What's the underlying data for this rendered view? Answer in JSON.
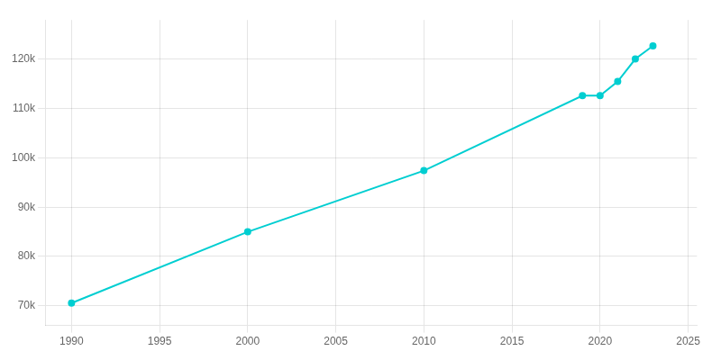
{
  "chart_data": {
    "type": "line",
    "x": [
      1990,
      2000,
      2010,
      2019,
      2020,
      2021,
      2022,
      2023
    ],
    "values": [
      70531,
      85000,
      97422,
      112641,
      112641,
      115513,
      120081,
      122748
    ],
    "color": "#00CED1",
    "marker": "circle",
    "xlim": [
      1988.5,
      2025.5
    ],
    "xticks": [
      1990,
      1995,
      2000,
      2005,
      2010,
      2015,
      2020,
      2025
    ],
    "ylim": [
      66000,
      128000
    ],
    "yticks": [
      {
        "value": 70000,
        "label": "70k"
      },
      {
        "value": 80000,
        "label": "80k"
      },
      {
        "value": 90000,
        "label": "90k"
      },
      {
        "value": 100000,
        "label": "100k"
      },
      {
        "value": 110000,
        "label": "110k"
      },
      {
        "value": 120000,
        "label": "120k"
      }
    ],
    "grid": true
  }
}
